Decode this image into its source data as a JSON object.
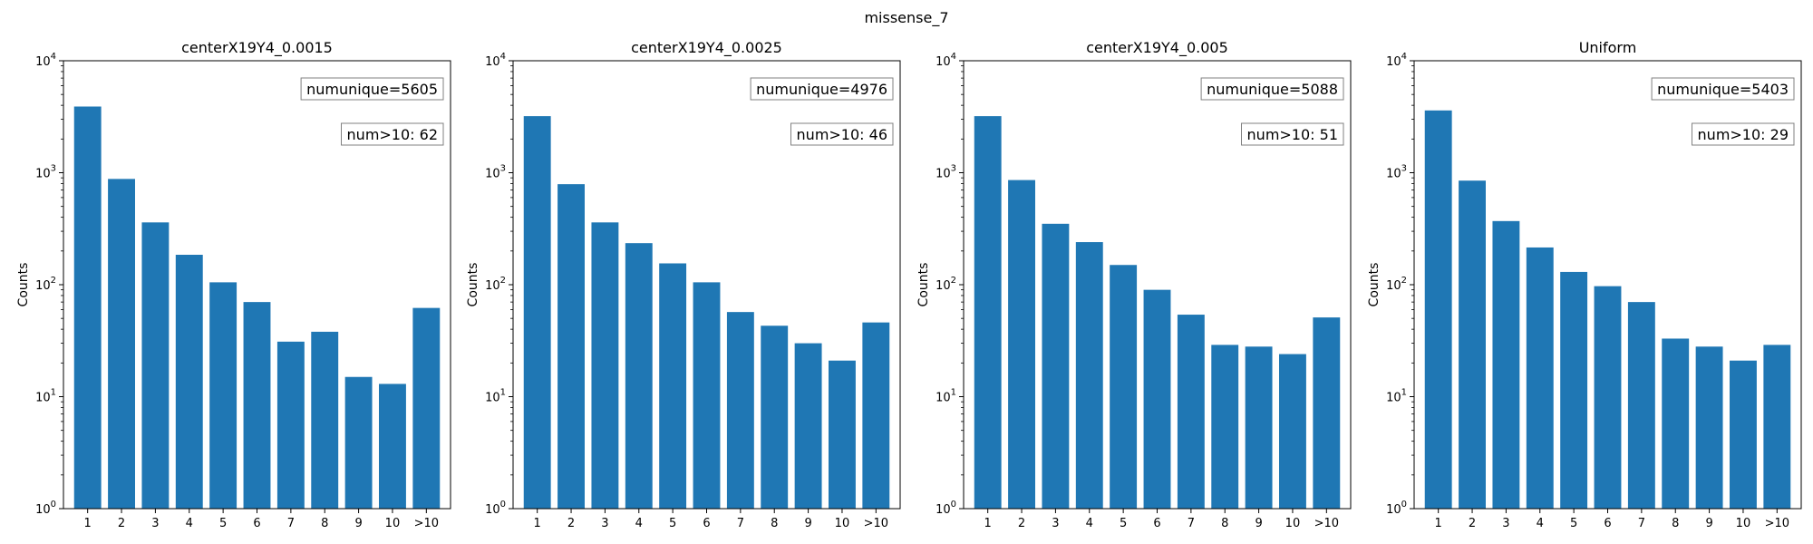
{
  "chart_data": {
    "type": "bar",
    "suptitle": "missense_7",
    "ylabel": "Counts",
    "yscale": "log",
    "ylim": [
      1,
      10000
    ],
    "yticks": [
      {
        "base": "10",
        "exp": "0"
      },
      {
        "base": "10",
        "exp": "1"
      },
      {
        "base": "10",
        "exp": "2"
      },
      {
        "base": "10",
        "exp": "3"
      },
      {
        "base": "10",
        "exp": "4"
      }
    ],
    "categories": [
      "1",
      "2",
      "3",
      "4",
      "5",
      "6",
      "7",
      "8",
      "9",
      "10",
      ">10"
    ],
    "bar_color": "#1f77b4",
    "panels": [
      {
        "title": "centerX19Y4_0.0015",
        "values": [
          3900,
          880,
          360,
          185,
          105,
          70,
          31,
          38,
          15,
          13,
          62
        ],
        "annotations": [
          "numunique=5605",
          "num>10: 62"
        ]
      },
      {
        "title": "centerX19Y4_0.0025",
        "values": [
          3200,
          790,
          360,
          235,
          155,
          105,
          57,
          43,
          30,
          21,
          46
        ],
        "annotations": [
          "numunique=4976",
          "num>10: 46"
        ]
      },
      {
        "title": "centerX19Y4_0.005",
        "values": [
          3200,
          860,
          350,
          240,
          150,
          90,
          54,
          29,
          28,
          24,
          51
        ],
        "annotations": [
          "numunique=5088",
          "num>10: 51"
        ]
      },
      {
        "title": "Uniform",
        "values": [
          3600,
          850,
          370,
          215,
          130,
          97,
          70,
          33,
          28,
          21,
          29
        ],
        "annotations": [
          "numunique=5403",
          "num>10: 29"
        ]
      }
    ]
  }
}
